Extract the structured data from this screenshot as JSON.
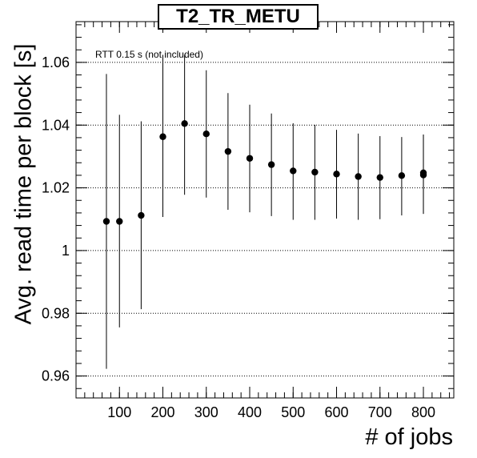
{
  "chart_data": {
    "type": "scatter",
    "title": "T2_TR_METU",
    "xlabel": "# of jobs",
    "ylabel": "Avg. read time per block [s]",
    "annotation": "RTT 0.15 s (not included)",
    "xlim": [
      0,
      870
    ],
    "ylim": [
      0.953,
      1.073
    ],
    "x_ticks": [
      "100",
      "200",
      "300",
      "400",
      "500",
      "600",
      "700",
      "800"
    ],
    "y_ticks": [
      "0.96",
      "0.98",
      "1",
      "1.02",
      "1.04",
      "1.06"
    ],
    "grid": "horizontal dotted at major y ticks",
    "series": [
      {
        "points": [
          {
            "x": 70,
            "y": 1.0093,
            "lo": 0.9623,
            "hi": 1.0563
          },
          {
            "x": 100,
            "y": 1.0093,
            "lo": 0.9755,
            "hi": 1.0433
          },
          {
            "x": 150,
            "y": 1.0112,
            "lo": 0.9813,
            "hi": 1.0412
          },
          {
            "x": 200,
            "y": 1.0363,
            "lo": 1.0107,
            "hi": 1.0624
          },
          {
            "x": 250,
            "y": 1.0405,
            "lo": 1.0178,
            "hi": 1.0624
          },
          {
            "x": 300,
            "y": 1.0372,
            "lo": 1.0169,
            "hi": 1.0575
          },
          {
            "x": 350,
            "y": 1.0316,
            "lo": 1.013,
            "hi": 1.0502
          },
          {
            "x": 400,
            "y": 1.0294,
            "lo": 1.0122,
            "hi": 1.0465
          },
          {
            "x": 450,
            "y": 1.0274,
            "lo": 1.011,
            "hi": 1.0437
          },
          {
            "x": 500,
            "y": 1.0254,
            "lo": 1.0098,
            "hi": 1.0406
          },
          {
            "x": 550,
            "y": 1.025,
            "lo": 1.0098,
            "hi": 1.0401
          },
          {
            "x": 600,
            "y": 1.0244,
            "lo": 1.0102,
            "hi": 1.0385
          },
          {
            "x": 650,
            "y": 1.0236,
            "lo": 1.0098,
            "hi": 1.0373
          },
          {
            "x": 700,
            "y": 1.0233,
            "lo": 1.01,
            "hi": 1.0365
          },
          {
            "x": 750,
            "y": 1.0239,
            "lo": 1.0112,
            "hi": 1.0362
          },
          {
            "x": 800,
            "y": 1.0248,
            "lo": 1.0117,
            "hi": 1.037
          },
          {
            "x": 800,
            "y": 1.0241,
            "lo": 1.0117,
            "hi": 1.037
          }
        ]
      }
    ]
  }
}
